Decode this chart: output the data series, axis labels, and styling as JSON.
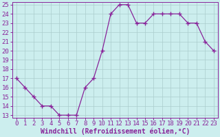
{
  "x": [
    0,
    1,
    2,
    3,
    4,
    5,
    6,
    7,
    8,
    9,
    10,
    11,
    12,
    13,
    14,
    15,
    16,
    17,
    18,
    19,
    20,
    21,
    22,
    23
  ],
  "y": [
    17,
    16,
    15,
    14,
    14,
    13,
    13,
    13,
    16,
    17,
    20,
    24,
    25,
    25,
    23,
    23,
    24,
    24,
    24,
    24,
    23,
    23,
    21,
    20
  ],
  "line_color": "#882299",
  "marker": "+",
  "marker_size": 4,
  "bg_color": "#cceeee",
  "grid_color": "#aacccc",
  "xlabel": "Windchill (Refroidissement éolien,°C)",
  "xlabel_color": "#882299",
  "tick_color": "#882299",
  "spine_color": "#882299",
  "ylim_min": 13,
  "ylim_max": 25,
  "xlim_min": 0,
  "xlim_max": 23,
  "yticks": [
    13,
    14,
    15,
    16,
    17,
    18,
    19,
    20,
    21,
    22,
    23,
    24,
    25
  ],
  "xticks": [
    0,
    1,
    2,
    3,
    4,
    5,
    6,
    7,
    8,
    9,
    10,
    11,
    12,
    13,
    14,
    15,
    16,
    17,
    18,
    19,
    20,
    21,
    22,
    23
  ],
  "font_size": 6.5,
  "label_font_size": 7,
  "linewidth": 0.9,
  "marker_linewidth": 1.0
}
